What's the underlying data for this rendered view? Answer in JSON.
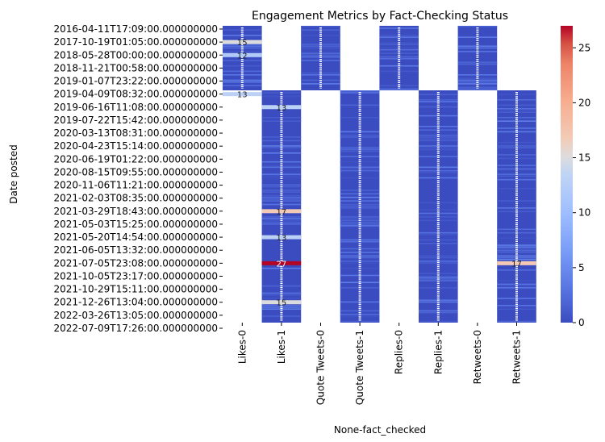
{
  "chart_data": {
    "type": "heatmap",
    "title": "Engagement Metrics by Fact-Checking Status",
    "xlabel": "None-fact_checked",
    "ylabel": "Date posted",
    "colormap": "coolwarm",
    "colorbar": {
      "min": 0,
      "max": 27,
      "ticks": [
        0,
        5,
        10,
        15,
        20,
        25
      ]
    },
    "low_color": "#3b4cc0",
    "high_color": "#b40426",
    "x_categories": [
      "Likes-0",
      "Likes-1",
      "Quote Tweets-0",
      "Quote Tweets-1",
      "Replies-0",
      "Replies-1",
      "Retweets-0",
      "Retweets-1"
    ],
    "y_ticks": [
      "2016-04-11T17:09:00.000000000",
      "2017-10-19T01:05:00.000000000",
      "2018-05-28T00:00:00.000000000",
      "2018-11-21T00:58:00.000000000",
      "2019-01-07T23:22:00.000000000",
      "2019-04-09T08:32:00.000000000",
      "2019-06-16T11:08:00.000000000",
      "2019-07-22T15:42:00.000000000",
      "2020-03-13T08:31:00.000000000",
      "2020-04-23T15:14:00.000000000",
      "2020-06-19T01:22:00.000000000",
      "2020-08-15T09:55:00.000000000",
      "2020-11-06T11:21:00.000000000",
      "2021-02-03T08:35:00.000000000",
      "2021-03-29T18:43:00.000000000",
      "2021-05-03T15:25:00.000000000",
      "2021-05-20T14:54:00.000000000",
      "2021-06-05T13:32:00.000000000",
      "2021-07-05T23:08:00.000000000",
      "2021-10-05T23:17:00.000000000",
      "2021-10-29T15:11:00.000000000",
      "2021-12-26T13:04:00.000000000",
      "2022-03-26T13:05:00.000000000",
      "2022-07-09T17:26:00.000000000"
    ],
    "highlights": [
      {
        "column": "Likes-0",
        "date": "2017-10-19T01:05:00.000000000",
        "value": 15,
        "label": "15"
      },
      {
        "column": "Likes-0",
        "date": "2018-05-28T00:00:00.000000000",
        "value": 12,
        "label": "12"
      },
      {
        "column": "Likes-0",
        "date": "2019-04-09T08:32:00.000000000",
        "value": 13,
        "label": "13"
      },
      {
        "column": "Likes-1",
        "date": "2019-06-16T11:08:00.000000000",
        "value": 13,
        "label": "13"
      },
      {
        "column": "Likes-1",
        "date": "2021-03-29T18:43:00.000000000",
        "value": 17,
        "label": "17"
      },
      {
        "column": "Likes-1",
        "date": "2021-05-20T14:54:00.000000000",
        "value": 13,
        "label": "13"
      },
      {
        "column": "Likes-1",
        "date": "2021-07-05T23:08:00.000000000",
        "value": 27,
        "label": "27"
      },
      {
        "column": "Likes-1",
        "date": "2021-12-26T13:04:00.000000000",
        "value": 15,
        "label": "15"
      },
      {
        "column": "Retweets-1",
        "date": "2021-07-05T23:08:00.000000000",
        "value": 17,
        "label": "17"
      }
    ]
  }
}
